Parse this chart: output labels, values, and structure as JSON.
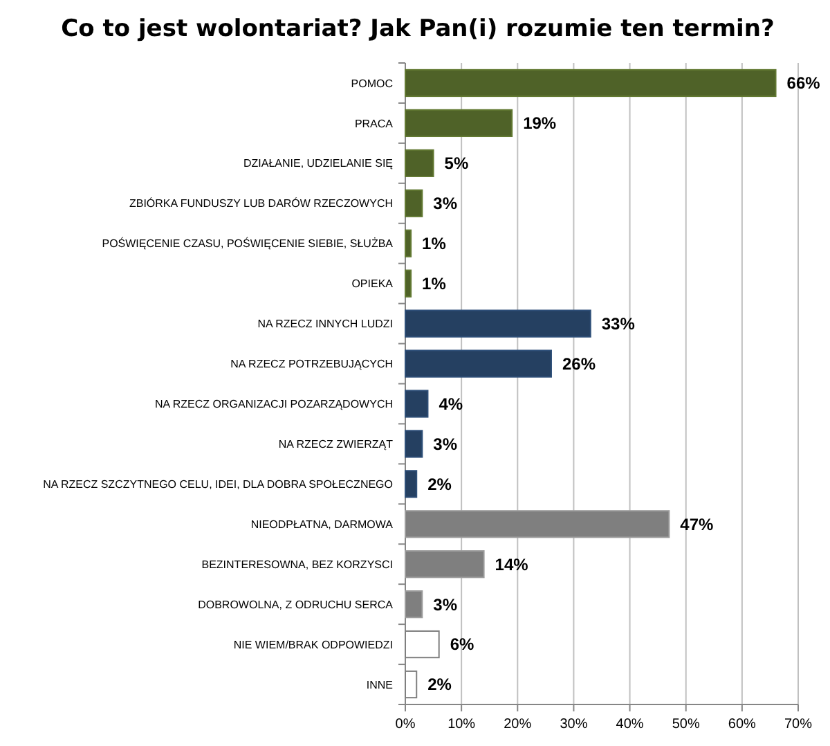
{
  "chart_data": {
    "type": "bar",
    "orientation": "horizontal",
    "title": "Co to jest wolontariat? Jak Pan(i) rozumie ten termin?",
    "categories": [
      "POMOC",
      "PRACA",
      "DZIAŁANIE, UDZIELANIE SIĘ",
      "ZBIÓRKA FUNDUSZY LUB DARÓW RZECZOWYCH",
      "POŚWIĘCENIE CZASU, POŚWIĘCENIE SIEBIE, SŁUŻBA",
      "OPIEKA",
      "NA RZECZ INNYCH LUDZI",
      "NA RZECZ POTRZEBUJĄCYCH",
      "NA RZECZ ORGANIZACJI POZARZĄDOWYCH",
      "NA RZECZ ZWIERZĄT",
      "NA RZECZ SZCZYTNEGO CELU, IDEI, DLA DOBRA SPOŁECZNEGO",
      "NIEODPŁATNA, DARMOWA",
      "BEZINTERESOWNA, BEZ KORZYSCI",
      "DOBROWOLNA, Z ODRUCHU SERCA",
      "NIE WIEM/BRAK ODPOWIEDZI",
      "INNE"
    ],
    "values": [
      66,
      19,
      5,
      3,
      1,
      1,
      33,
      26,
      4,
      3,
      2,
      47,
      14,
      3,
      6,
      2
    ],
    "value_labels": [
      "66%",
      "19%",
      "5%",
      "3%",
      "1%",
      "1%",
      "33%",
      "26%",
      "4%",
      "3%",
      "2%",
      "47%",
      "14%",
      "3%",
      "6%",
      "2%"
    ],
    "colors": [
      "#4f6228",
      "#4f6228",
      "#4f6228",
      "#4f6228",
      "#4f6228",
      "#4f6228",
      "#254061",
      "#254061",
      "#254061",
      "#254061",
      "#254061",
      "#7f7f7f",
      "#7f7f7f",
      "#7f7f7f",
      "#ffffff",
      "#ffffff"
    ],
    "xlim": [
      0,
      70
    ],
    "xticks": [
      {
        "value": 0,
        "label": "0%"
      },
      {
        "value": 10,
        "label": "10%"
      },
      {
        "value": 20,
        "label": "20%"
      },
      {
        "value": 30,
        "label": "30%"
      },
      {
        "value": 40,
        "label": "40%"
      },
      {
        "value": 50,
        "label": "50%"
      },
      {
        "value": 60,
        "label": "60%"
      },
      {
        "value": 70,
        "label": "70%"
      }
    ],
    "grid": "x"
  }
}
